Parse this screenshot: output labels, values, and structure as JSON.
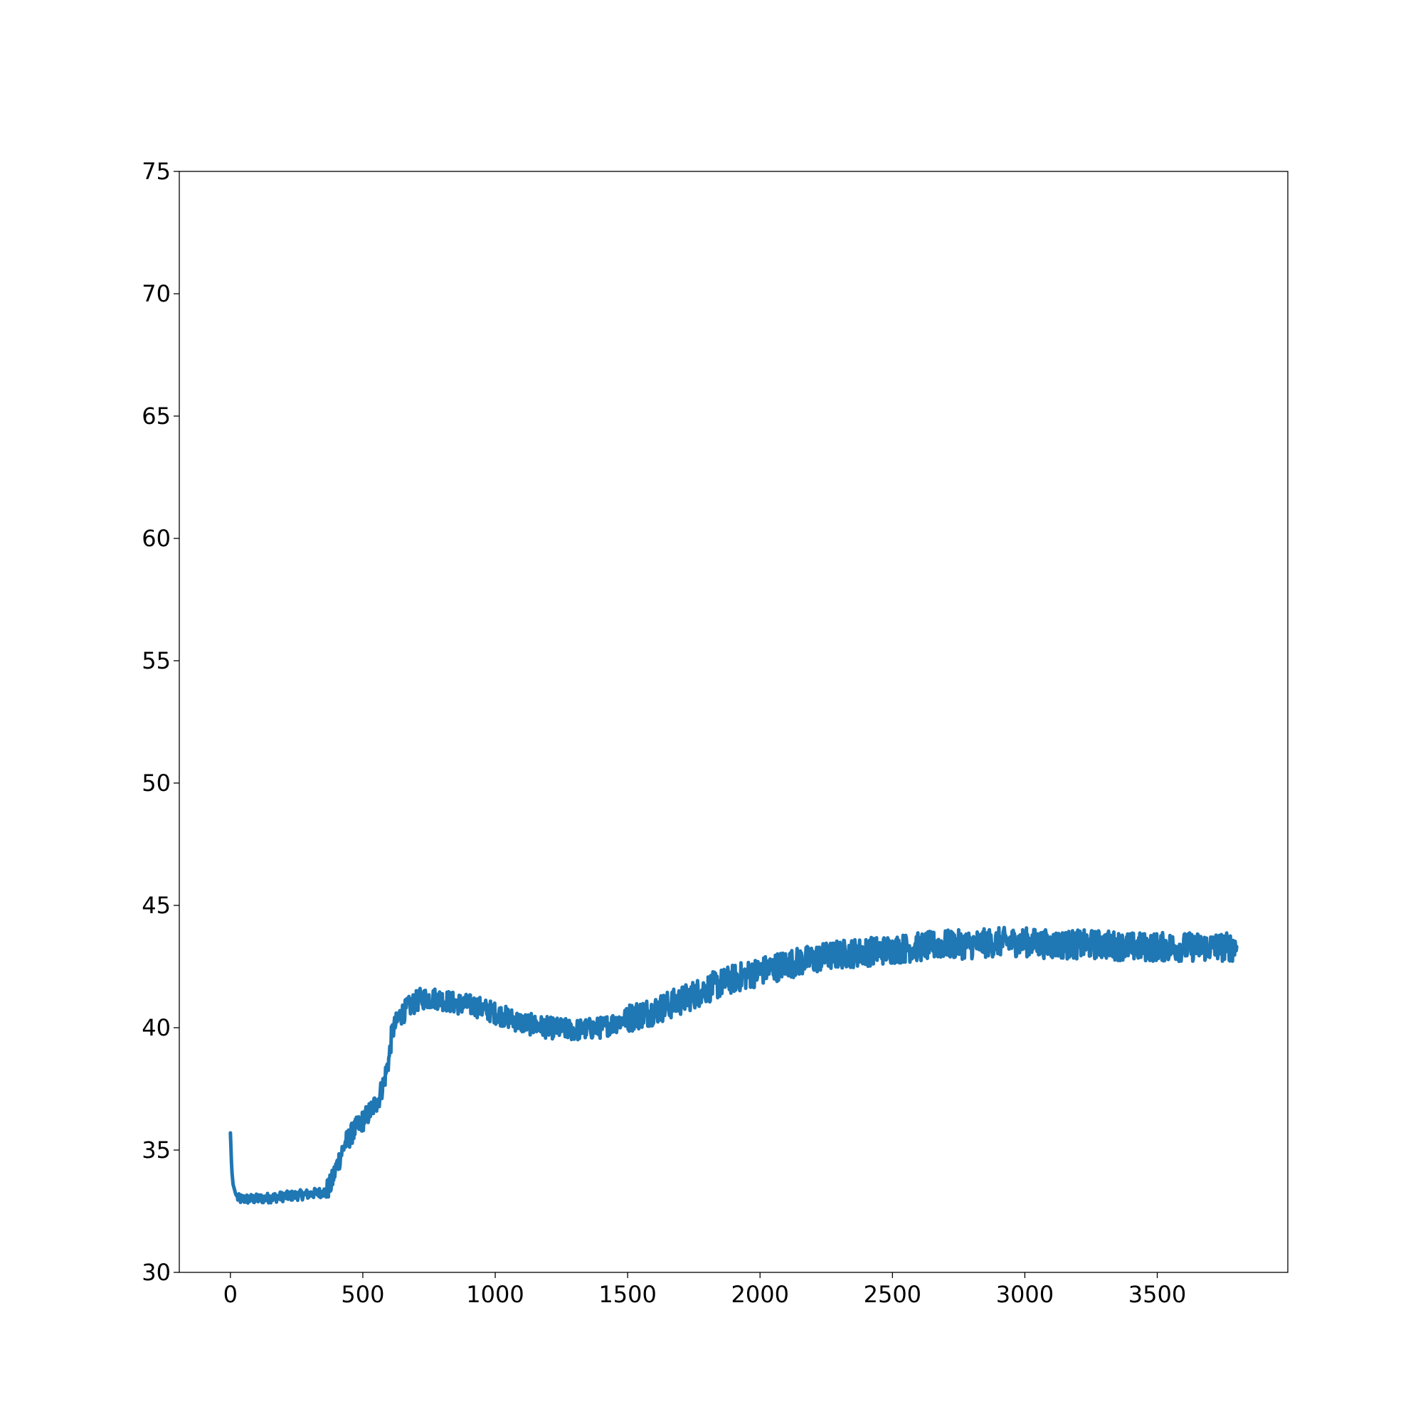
{
  "chart_data": {
    "type": "line",
    "title": "",
    "xlabel": "",
    "ylabel": "",
    "xlim": [
      -193,
      3993
    ],
    "ylim": [
      30,
      75
    ],
    "x_ticks": [
      0,
      500,
      1000,
      1500,
      2000,
      2500,
      3000,
      3500
    ],
    "x_tick_labels": [
      "0",
      "500",
      "1000",
      "1500",
      "2000",
      "2500",
      "3000",
      "3500"
    ],
    "y_ticks": [
      30,
      35,
      40,
      45,
      50,
      55,
      60,
      65,
      70,
      75
    ],
    "y_tick_labels": [
      "30",
      "35",
      "40",
      "45",
      "50",
      "55",
      "60",
      "65",
      "70",
      "75"
    ],
    "grid": false,
    "legend": "none",
    "series": [
      {
        "color": "#1f77b4",
        "noise_amplitude": 0.6,
        "x_end": 3800,
        "x": [
          0,
          5,
          10,
          20,
          30,
          50,
          100,
          200,
          300,
          360,
          380,
          400,
          430,
          460,
          500,
          530,
          560,
          580,
          590,
          600,
          610,
          640,
          680,
          720,
          780,
          850,
          920,
          1000,
          1100,
          1200,
          1300,
          1400,
          1450,
          1500,
          1600,
          1700,
          1800,
          1900,
          2000,
          2100,
          2200,
          2300,
          2400,
          2500,
          2600,
          2700,
          2800,
          2900,
          3000,
          3100,
          3200,
          3300,
          3400,
          3500,
          3600,
          3700,
          3800
        ],
        "y": [
          35.7,
          34.2,
          33.6,
          33.2,
          33.0,
          33.0,
          33.0,
          33.1,
          33.2,
          33.3,
          33.6,
          34.3,
          35.2,
          35.7,
          36.2,
          36.6,
          37.1,
          37.8,
          38.3,
          38.8,
          39.8,
          40.5,
          40.9,
          41.2,
          41.2,
          41.0,
          40.9,
          40.6,
          40.2,
          40.0,
          39.9,
          40.0,
          40.2,
          40.4,
          40.7,
          41.1,
          41.6,
          42.0,
          42.3,
          42.6,
          42.8,
          43.0,
          43.1,
          43.2,
          43.3,
          43.4,
          43.4,
          43.5,
          43.5,
          43.4,
          43.4,
          43.4,
          43.3,
          43.3,
          43.3,
          43.3,
          43.3
        ]
      }
    ]
  }
}
